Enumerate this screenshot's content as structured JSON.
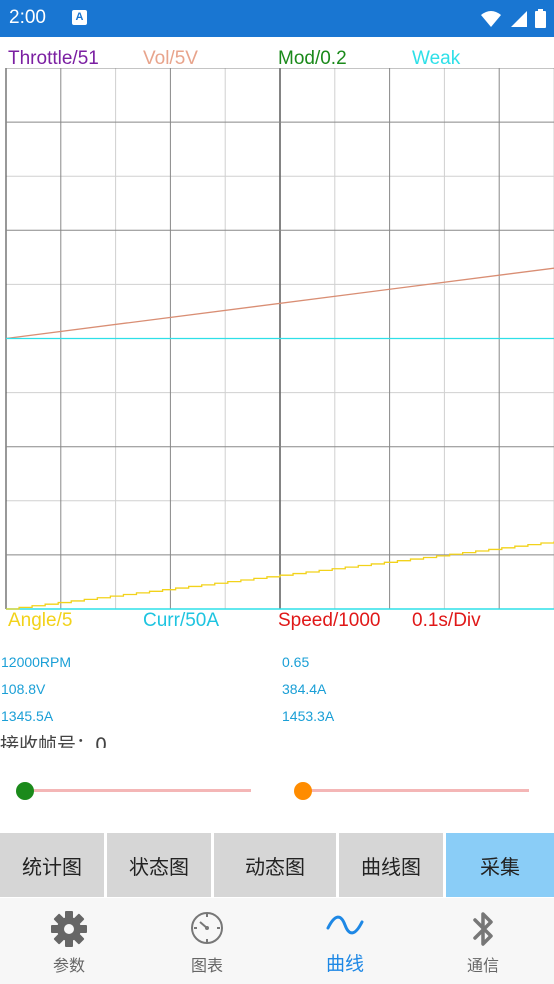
{
  "status_bar": {
    "time": "2:00",
    "notification_icon": "a-icon",
    "icons": [
      "wifi-icon",
      "signal-icon",
      "battery-icon"
    ]
  },
  "scope": {
    "top_labels": [
      {
        "text": "Throttle/51",
        "color": "#7b1fa2"
      },
      {
        "text": "Vol/5V",
        "color": "#e8a48c"
      },
      {
        "text": "Mod/0.2",
        "color": "#1b8a1b"
      },
      {
        "text": "Weak",
        "color": "#2ee0e8"
      }
    ],
    "bottom_labels": [
      {
        "text": "Angle/5",
        "color": "#f2d21a"
      },
      {
        "text": "Curr/50A",
        "color": "#1ec4e0"
      },
      {
        "text": "Speed/1000",
        "color": "#e01818"
      },
      {
        "text": "0.1s/Div",
        "color": "#e01818"
      }
    ]
  },
  "chart_data": {
    "type": "line",
    "grid": true,
    "x_divisions": 10,
    "y_divisions": 10,
    "series": [
      {
        "color": "#d98e74",
        "points": [
          [
            0,
            5.0
          ],
          [
            10,
            6.3
          ]
        ]
      },
      {
        "color": "#2ee0e8",
        "points": [
          [
            0,
            5.0
          ],
          [
            10,
            5.0
          ]
        ]
      },
      {
        "color": "#f2d21a",
        "steps": 42,
        "points": [
          [
            0,
            0.0
          ],
          [
            10,
            1.25
          ]
        ]
      }
    ]
  },
  "readouts": {
    "left": [
      "12000RPM",
      "108.8V",
      "1345.5A"
    ],
    "right": [
      "0.65",
      "384.4A",
      "1453.3A"
    ],
    "frames": "接收帧号：0"
  },
  "sliders": [
    {
      "value": 0.0,
      "color": "#1b8a1b"
    },
    {
      "value": 0.0,
      "color": "#ff8c00"
    }
  ],
  "buttons": [
    "统计图",
    "状态图",
    "动态图",
    "曲线图",
    "采集"
  ],
  "nav": [
    {
      "label": "参数",
      "icon": "gear-icon"
    },
    {
      "label": "图表",
      "icon": "gauge-icon"
    },
    {
      "label": "曲线",
      "icon": "wave-icon"
    },
    {
      "label": "通信",
      "icon": "bluetooth-icon"
    }
  ]
}
